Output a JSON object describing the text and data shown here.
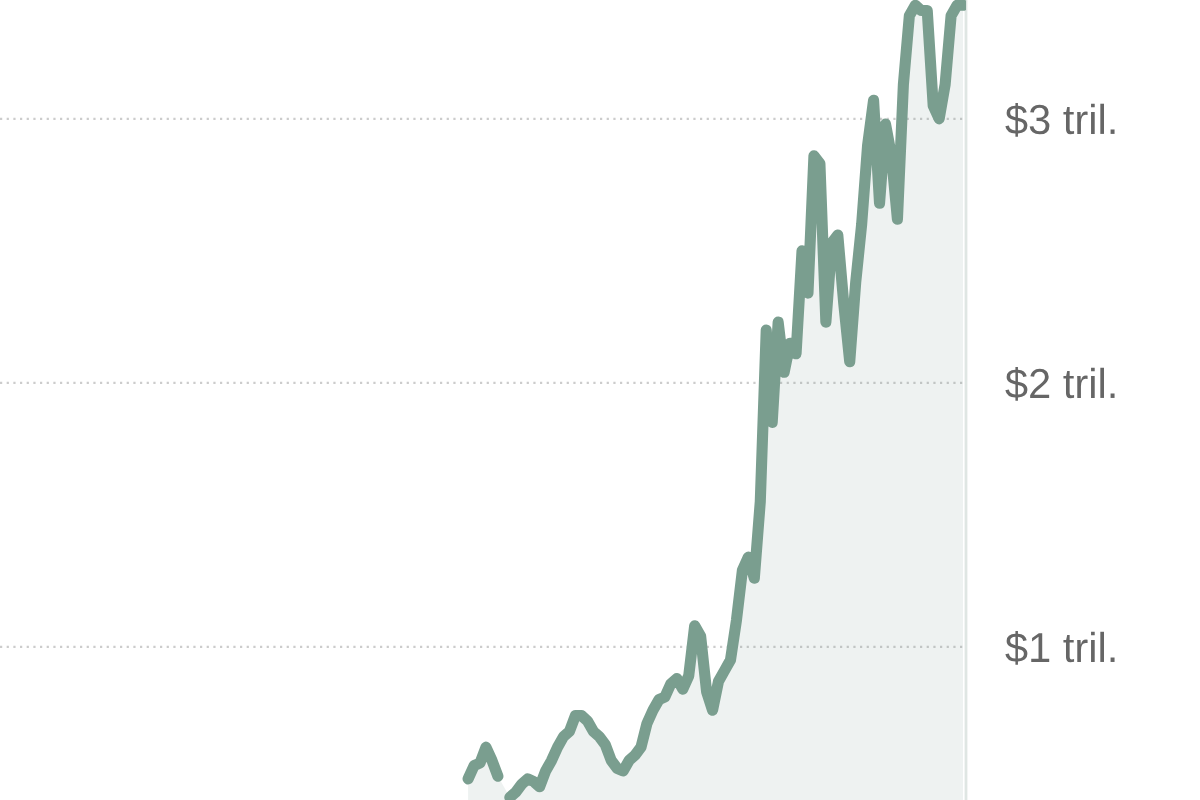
{
  "chart_data": {
    "type": "area",
    "categories": [
      null,
      null,
      null,
      null,
      null,
      null,
      null,
      null,
      null,
      null,
      null,
      null,
      null,
      null,
      null,
      null,
      null,
      null,
      null,
      null,
      null,
      null,
      null,
      null,
      null,
      null,
      null,
      null,
      null,
      null,
      null,
      null,
      null,
      null,
      null,
      null,
      null,
      null,
      null,
      null,
      null,
      null,
      null,
      null,
      null,
      null,
      null,
      null,
      null,
      null,
      null,
      null,
      null,
      null,
      null,
      null,
      null,
      null,
      null,
      null,
      null,
      null,
      null,
      null,
      null,
      null,
      null,
      null,
      null,
      null,
      null,
      null,
      null,
      null,
      null,
      null,
      null,
      null,
      null,
      null,
      null,
      null,
      null,
      null,
      null,
      null,
      null,
      null,
      null,
      null,
      null,
      null,
      null,
      null,
      null,
      null,
      null,
      null,
      null,
      null,
      null,
      null,
      null,
      null,
      null,
      null,
      null,
      null,
      null,
      null,
      null,
      null,
      null,
      null,
      null,
      null,
      null,
      null,
      null,
      null,
      null,
      null,
      null,
      null,
      null,
      null,
      null,
      null,
      null,
      null,
      null,
      null,
      null,
      null,
      null,
      null,
      null,
      null,
      null,
      null,
      null,
      null,
      null,
      null,
      null,
      null,
      null,
      null,
      null,
      null,
      null,
      null,
      null,
      null,
      null,
      null,
      null,
      null,
      null,
      null,
      null,
      null
    ],
    "series": [
      {
        "color": "#7a9e8f",
        "values": [
          null,
          null,
          null,
          null,
          null,
          null,
          null,
          null,
          null,
          null,
          null,
          null,
          null,
          null,
          null,
          null,
          null,
          null,
          null,
          null,
          null,
          null,
          null,
          null,
          null,
          null,
          null,
          null,
          null,
          null,
          null,
          null,
          null,
          null,
          null,
          null,
          null,
          null,
          null,
          null,
          null,
          null,
          null,
          null,
          null,
          null,
          null,
          null,
          null,
          null,
          null,
          null,
          null,
          null,
          null,
          null,
          null,
          null,
          null,
          null,
          null,
          null,
          null,
          null,
          null,
          null,
          null,
          null,
          null,
          null,
          null,
          null,
          null,
          null,
          null,
          null,
          null,
          null,
          0.5,
          0.55,
          0.56,
          0.62,
          0.57,
          0.51,
          null,
          0.43,
          0.45,
          0.48,
          0.5,
          0.49,
          0.47,
          0.53,
          0.57,
          0.62,
          0.66,
          0.68,
          0.74,
          0.74,
          0.72,
          0.68,
          0.66,
          0.63,
          0.57,
          0.54,
          0.53,
          0.57,
          0.59,
          0.62,
          0.71,
          0.76,
          0.8,
          0.81,
          0.86,
          0.88,
          0.84,
          0.89,
          1.08,
          1.04,
          0.83,
          0.76,
          0.87,
          0.91,
          0.95,
          1.1,
          1.29,
          1.34,
          1.26,
          1.55,
          2.2,
          1.85,
          2.23,
          2.04,
          2.15,
          2.11,
          2.5,
          2.34,
          2.86,
          2.83,
          2.23,
          2.53,
          2.56,
          2.3,
          2.08,
          2.38,
          2.6,
          2.9,
          3.07,
          2.68,
          2.98,
          2.86,
          2.62,
          3.13,
          3.39,
          3.43,
          3.41,
          3.41,
          3.05,
          3.0,
          3.13,
          3.39,
          3.43,
          3.43
        ]
      }
    ],
    "ylim": [
      0.42,
      3.45
    ],
    "yticks": [
      {
        "value": 1,
        "label": "$1 tril."
      },
      {
        "value": 2,
        "label": "$2 tril."
      },
      {
        "value": 3,
        "label": "$3 tril."
      }
    ],
    "grid": "y",
    "tick_labels": "y"
  }
}
